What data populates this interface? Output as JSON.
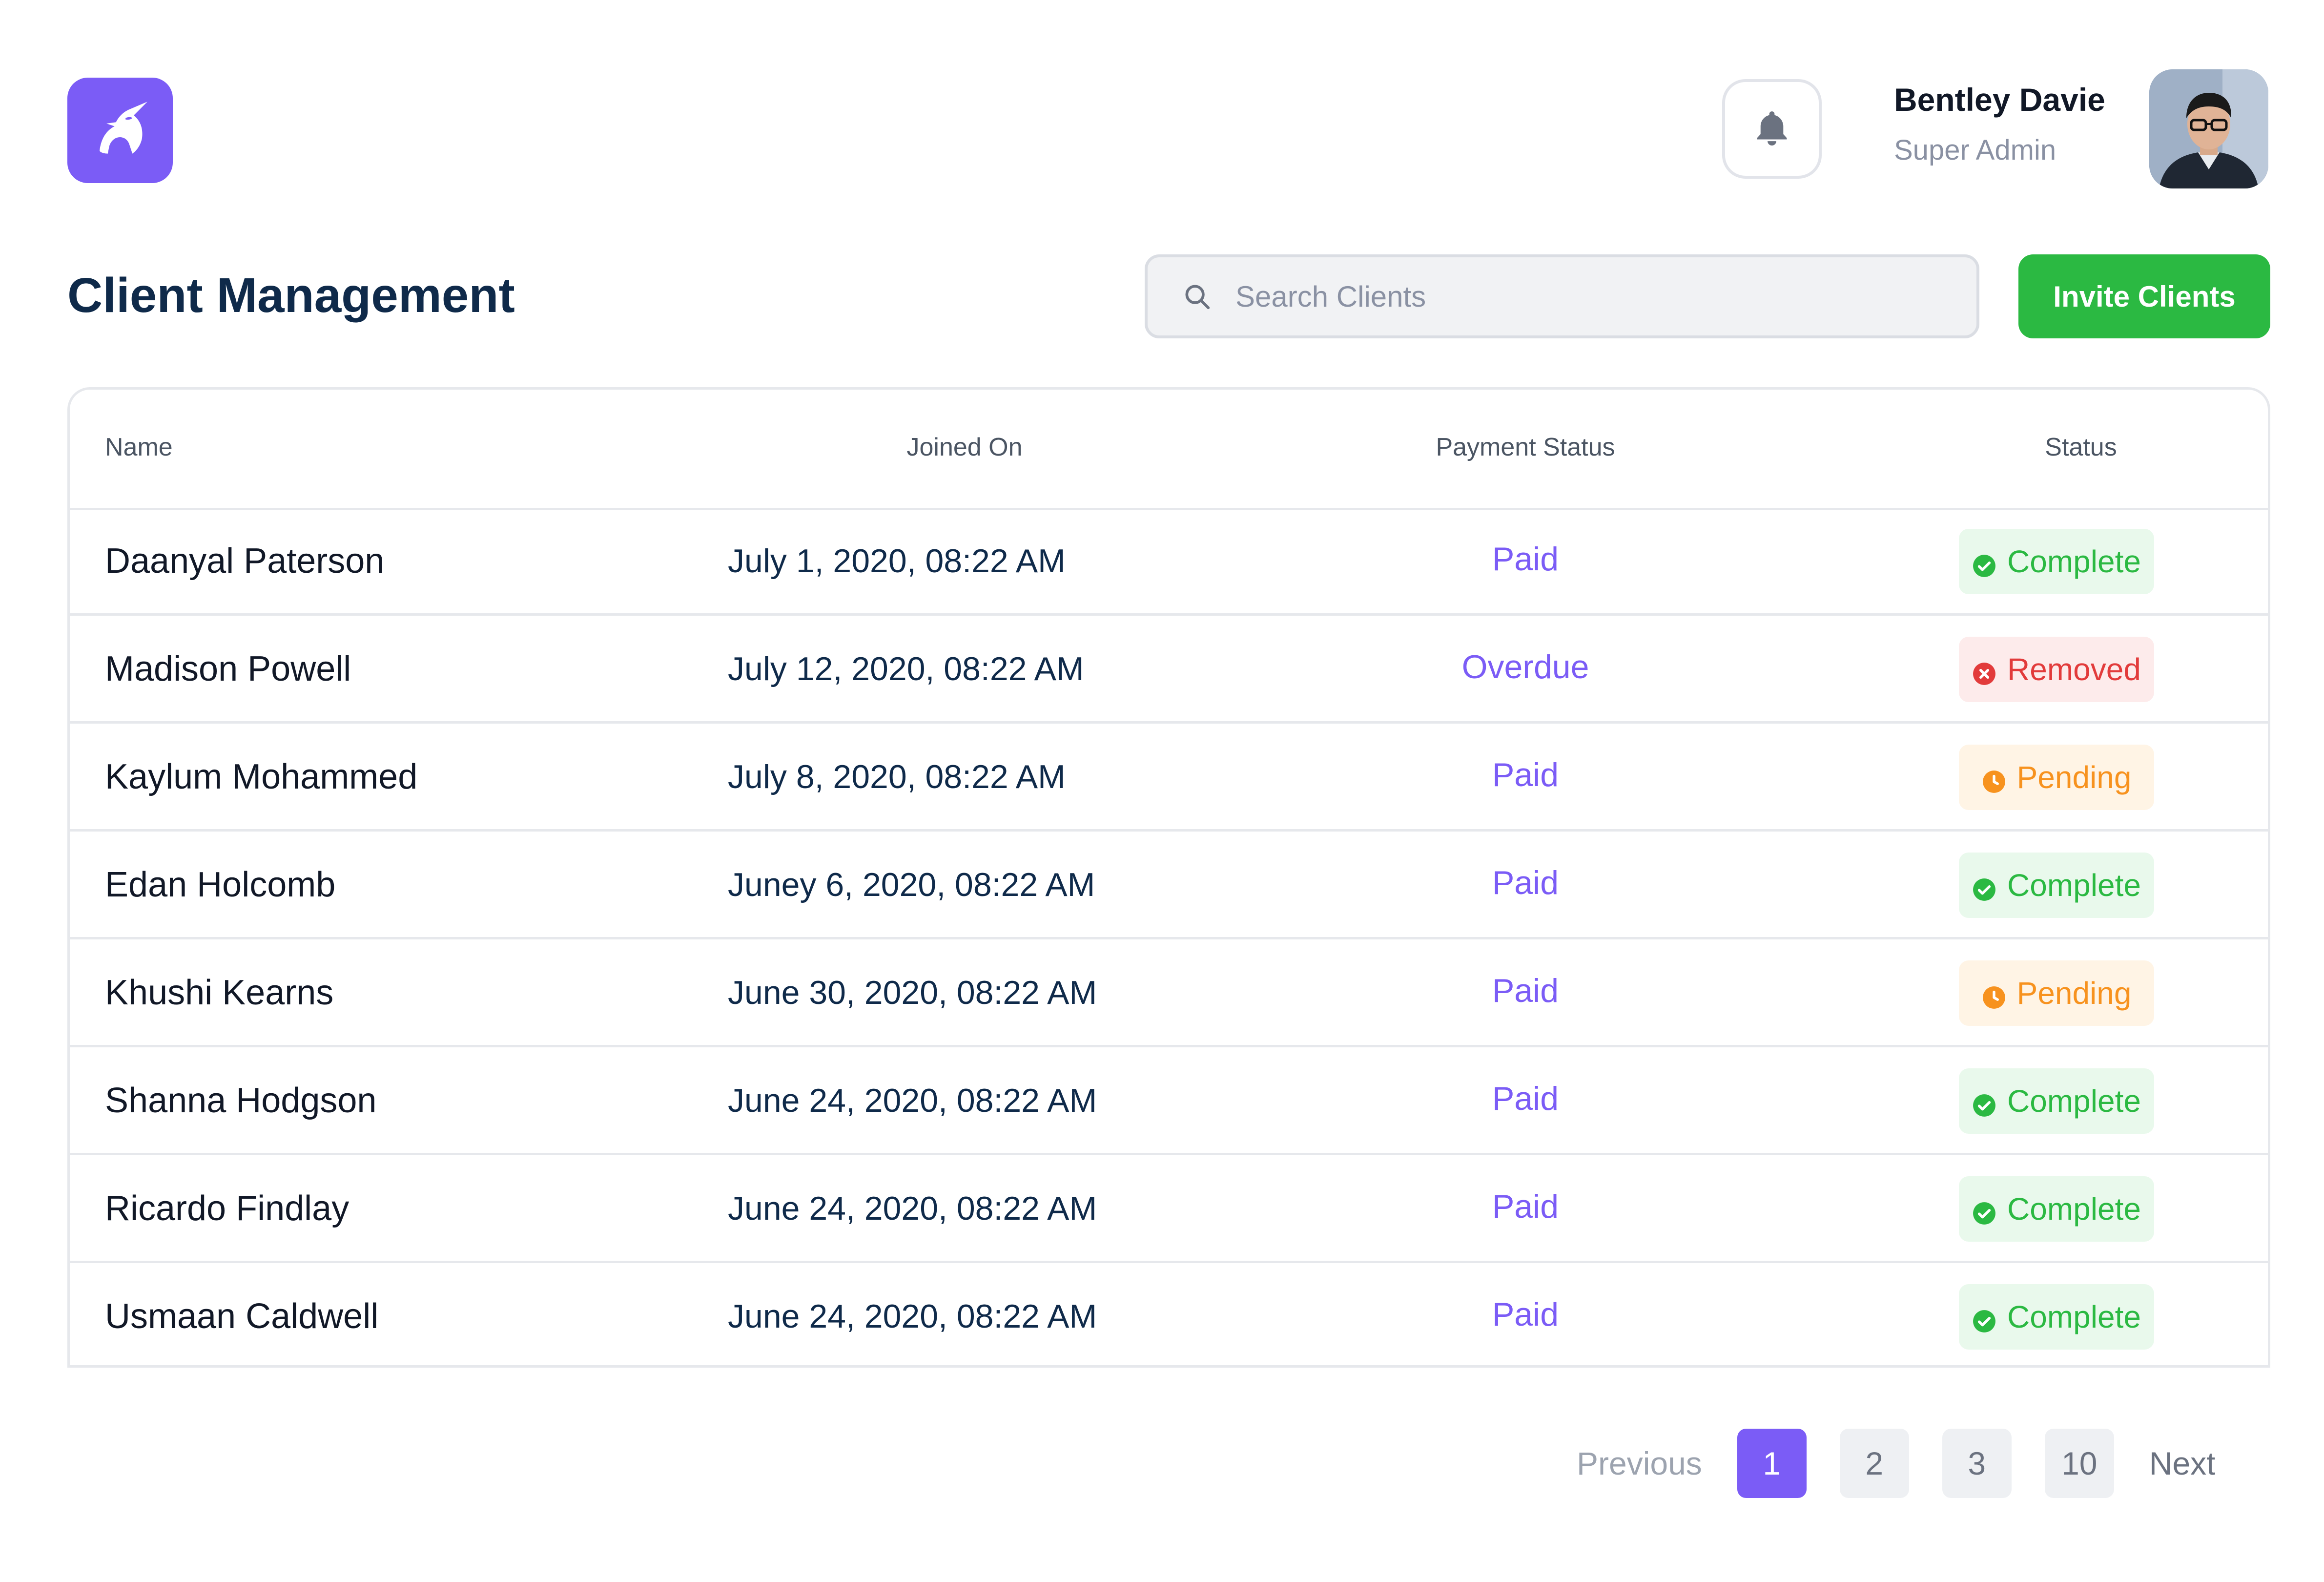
{
  "header": {
    "user": {
      "name": "Bentley Davie",
      "role": "Super Admin"
    }
  },
  "main": {
    "title": "Client Management",
    "search": {
      "placeholder": "Search Clients",
      "value": ""
    },
    "invite_label": "Invite Clients"
  },
  "table": {
    "columns": {
      "name": "Name",
      "joined": "Joined On",
      "payment": "Payment Status",
      "status": "Status"
    },
    "rows": [
      {
        "name": "Daanyal Paterson",
        "joined": "July 1, 2020, 08:22 AM",
        "payment": "Paid",
        "status": "Complete",
        "status_type": "complete"
      },
      {
        "name": "Madison Powell",
        "joined": "July 12, 2020, 08:22 AM",
        "payment": "Overdue",
        "status": "Removed",
        "status_type": "removed"
      },
      {
        "name": "Kaylum Mohammed",
        "joined": "July 8, 2020, 08:22 AM",
        "payment": "Paid",
        "status": "Pending",
        "status_type": "pending"
      },
      {
        "name": "Edan Holcomb",
        "joined": "Juney 6, 2020, 08:22 AM",
        "payment": "Paid",
        "status": "Complete",
        "status_type": "complete"
      },
      {
        "name": "Khushi Kearns",
        "joined": "June 30, 2020, 08:22 AM",
        "payment": "Paid",
        "status": "Pending",
        "status_type": "pending"
      },
      {
        "name": "Shanna Hodgson",
        "joined": "June 24, 2020, 08:22 AM",
        "payment": "Paid",
        "status": "Complete",
        "status_type": "complete"
      },
      {
        "name": "Ricardo Findlay",
        "joined": "June 24, 2020, 08:22 AM",
        "payment": "Paid",
        "status": "Complete",
        "status_type": "complete"
      },
      {
        "name": "Usmaan Caldwell",
        "joined": "June 24, 2020, 08:22 AM",
        "payment": "Paid",
        "status": "Complete",
        "status_type": "complete"
      }
    ]
  },
  "pagination": {
    "previous": "Previous",
    "next": "Next",
    "pages": [
      "1",
      "2",
      "3",
      "10"
    ],
    "current": "1"
  },
  "colors": {
    "accent": "#7B5CF6",
    "invite": "#2BB942",
    "complete": "#2BB942",
    "removed": "#E23B3B",
    "pending": "#F7921E",
    "title": "#0F2A4A"
  },
  "icons": {
    "logo": "unicorn-logo-icon",
    "notifications": "bell-icon",
    "search": "search-icon",
    "complete": "check-circle-icon",
    "removed": "x-circle-icon",
    "pending": "clock-icon"
  }
}
